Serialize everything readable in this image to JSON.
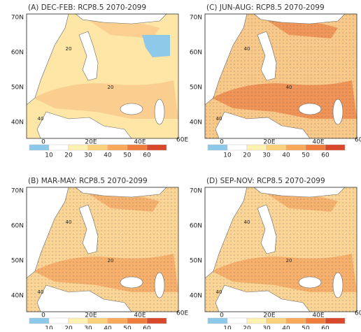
{
  "colorbar": {
    "labels": [
      "10",
      "20",
      "30",
      "40",
      "50",
      "60"
    ],
    "colors": [
      "#8fc9ea",
      "#ffffff",
      "#fff1b3",
      "#fdd27c",
      "#f8aa5a",
      "#ee7d3e",
      "#d8482a"
    ]
  },
  "lat_labels": [
    "70N",
    "60N",
    "50N",
    "40N"
  ],
  "lon_labels": [
    "0",
    "20E",
    "40E",
    "60E"
  ],
  "panels": [
    {
      "title": "(A) DEC-FEB: RCP8.5 2070-2099",
      "land_color": "#fde6a6",
      "patch_color": "#f9c98a",
      "stipple": false,
      "contour_labels": [
        "20",
        "20",
        "40"
      ]
    },
    {
      "title": "(C) JUN-AUG: RCP8.5 2070-2099",
      "land_color": "#f9c98a",
      "patch_color": "#ee8a4e",
      "stipple": true,
      "contour_labels": [
        "40",
        "40",
        "40"
      ]
    },
    {
      "title": "(B) MAR-MAY: RCP8.5 2070-2099",
      "land_color": "#fbd596",
      "patch_color": "#f4a965",
      "stipple": true,
      "contour_labels": [
        "40",
        "20",
        "40"
      ]
    },
    {
      "title": "(D) SEP-NOV: RCP8.5 2070-2099",
      "land_color": "#fbd596",
      "patch_color": "#f4a965",
      "stipple": true,
      "contour_labels": [
        "40",
        "20",
        "40"
      ]
    }
  ]
}
